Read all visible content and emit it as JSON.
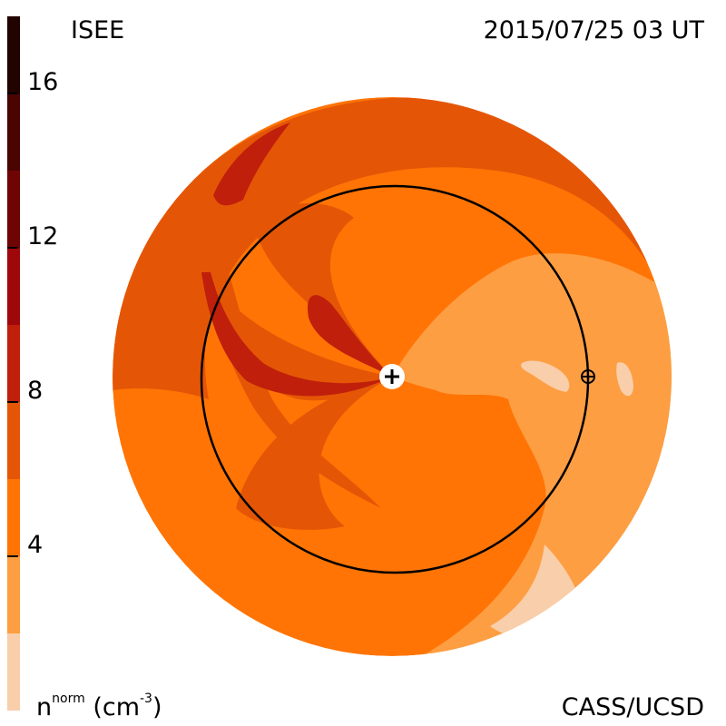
{
  "header": {
    "source": "ISEE",
    "datetime": "2015/07/25 03 UT"
  },
  "footer": {
    "quantity_base": "n",
    "quantity_sup": "norm",
    "unit_pre": "(cm",
    "unit_sup": "-3",
    "unit_post": ")",
    "credit": "CASS/UCSD"
  },
  "chart_data": {
    "type": "heatmap",
    "description_kind": "polar density map",
    "colorbar": {
      "range": [
        0,
        18
      ],
      "levels": [
        {
          "from": 0,
          "to": 2,
          "color": "#f9ceaa"
        },
        {
          "from": 2,
          "to": 4,
          "color": "#fd9e42"
        },
        {
          "from": 4,
          "to": 6,
          "color": "#ff7405"
        },
        {
          "from": 6,
          "to": 8,
          "color": "#e45606"
        },
        {
          "from": 8,
          "to": 10,
          "color": "#c01f0b"
        },
        {
          "from": 10,
          "to": 12,
          "color": "#9f080b"
        },
        {
          "from": 12,
          "to": 14,
          "color": "#6e0504"
        },
        {
          "from": 14,
          "to": 16,
          "color": "#4a0402"
        },
        {
          "from": 16,
          "to": 18,
          "color": "#210300"
        }
      ],
      "ticks": [
        {
          "value": 4,
          "label": "4"
        },
        {
          "value": 8,
          "label": "8"
        },
        {
          "value": 12,
          "label": "12"
        },
        {
          "value": 16,
          "label": "16"
        }
      ]
    },
    "markers": [
      {
        "name": "sun",
        "symbol": "+"
      },
      {
        "name": "earth",
        "symbol": "⊕"
      }
    ],
    "orbit_circle": "Earth orbit (1 AU)"
  }
}
